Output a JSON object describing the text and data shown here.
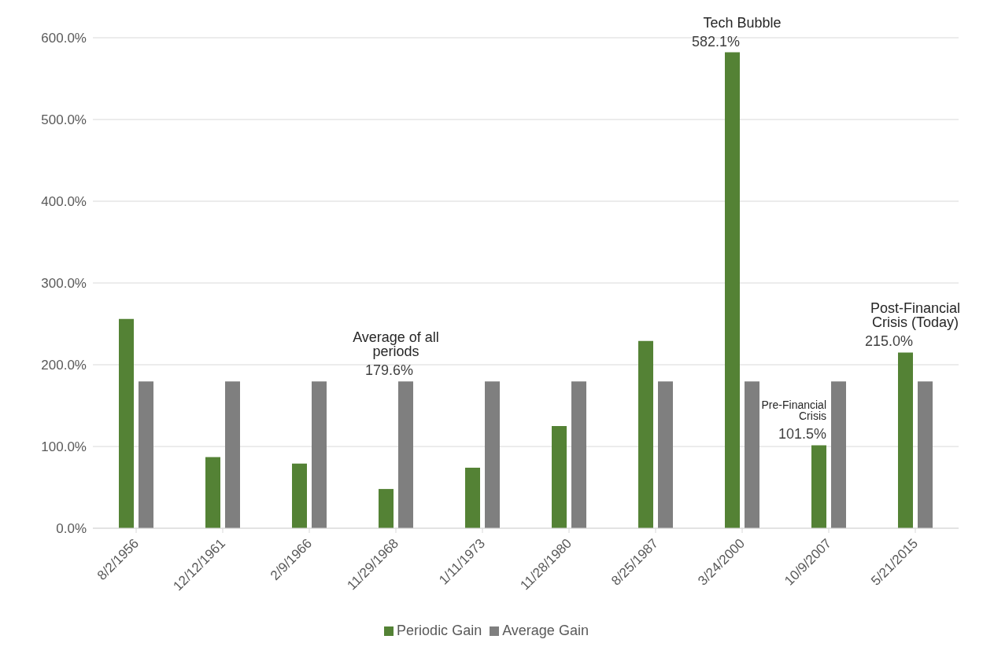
{
  "chart_data": {
    "type": "bar",
    "categories": [
      "8/2/1956",
      "12/12/1961",
      "2/9/1966",
      "11/29/1968",
      "1/11/1973",
      "11/28/1980",
      "8/25/1987",
      "3/24/2000",
      "10/9/2007",
      "5/21/2015"
    ],
    "series": [
      {
        "name": "Periodic Gain",
        "color": "#548235",
        "values": [
          256,
          87,
          79,
          48,
          74,
          125,
          229,
          582.1,
          101.5,
          215.0
        ],
        "value_labels": [
          null,
          null,
          null,
          null,
          null,
          null,
          null,
          "582.1%",
          "101.5%",
          "215.0%"
        ]
      },
      {
        "name": "Average Gain",
        "color": "#7f7f7f",
        "values": [
          179.6,
          179.6,
          179.6,
          179.6,
          179.6,
          179.6,
          179.6,
          179.6,
          179.6,
          179.6
        ],
        "value_labels": [
          null,
          null,
          null,
          "179.6%",
          null,
          null,
          null,
          null,
          null,
          null
        ]
      }
    ],
    "ylim": [
      0,
      600
    ],
    "yticks": [
      {
        "value": 0,
        "label": "0.0%"
      },
      {
        "value": 100,
        "label": "100.0%"
      },
      {
        "value": 200,
        "label": "200.0%"
      },
      {
        "value": 300,
        "label": "300.0%"
      },
      {
        "value": 400,
        "label": "400.0%"
      },
      {
        "value": 500,
        "label": "500.0%"
      },
      {
        "value": 600,
        "label": "600.0%"
      }
    ],
    "annotations": [
      {
        "text": "Tech Bubble",
        "x": "3/24/2000",
        "y": 582.1
      },
      {
        "text": "Average of all periods",
        "x": "11/29/1968",
        "y": 179.6
      },
      {
        "text": "Pre-Financial Crisis",
        "x": "10/9/2007",
        "y": 101.5
      },
      {
        "text": "Post-Financial Crisis (Today)",
        "x": "5/21/2015",
        "y": 215.0
      }
    ],
    "grid": "y",
    "legend": "bottom"
  }
}
